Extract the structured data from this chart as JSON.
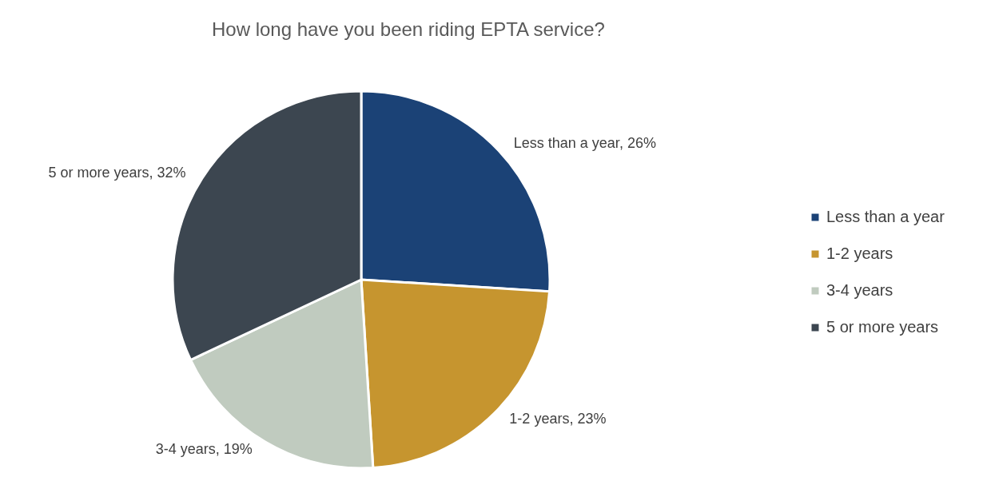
{
  "chart_data": {
    "type": "pie",
    "title": "How long have you been riding EPTA service?",
    "categories": [
      "Less than a year",
      "1-2 years",
      "3-4 years",
      "5 or more years"
    ],
    "values": [
      26,
      23,
      19,
      32
    ],
    "colors": [
      "#1b4276",
      "#c6952f",
      "#c0cbbf",
      "#3c4650"
    ],
    "value_labels": [
      "Less than a year, 26%",
      "1-2 years, 23%",
      "3-4 years, 19%",
      "5 or more years, 32%"
    ],
    "legend": "right"
  }
}
